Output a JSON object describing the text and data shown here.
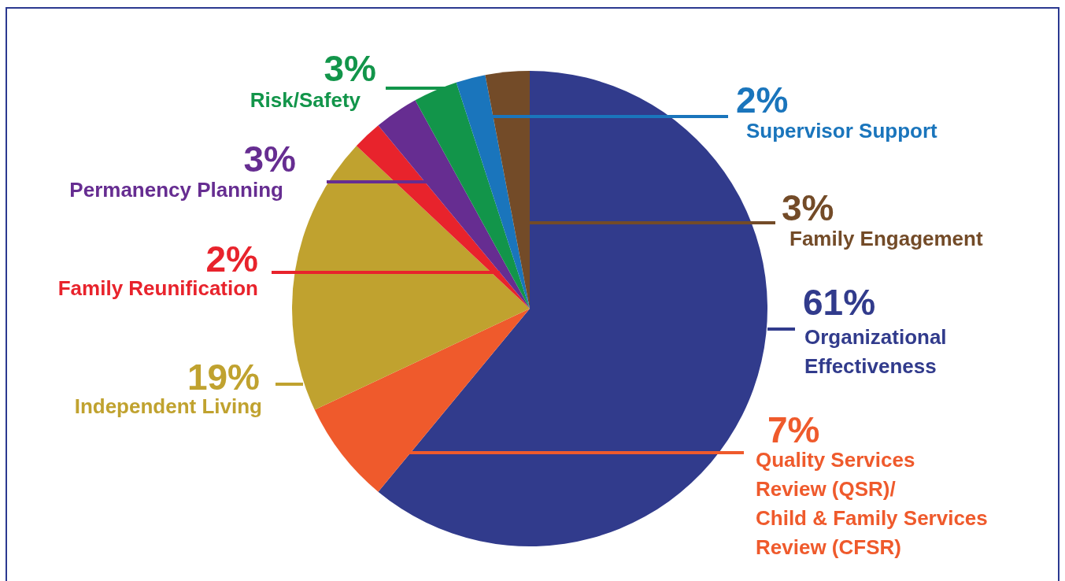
{
  "chart_data": {
    "type": "pie",
    "categories": [
      "Organizational Effectiveness",
      "Quality Services\nReview (QSR)/\nChild & Family Services\nReview (CFSR)",
      "Independent Living",
      "Family Reunification",
      "Permanency Planning",
      "Risk/Safety",
      "Supervisor Support",
      "Family Engagement"
    ],
    "values": [
      61,
      7,
      19,
      2,
      3,
      3,
      2,
      3
    ],
    "colors": [
      "#313b8c",
      "#ef5a2c",
      "#c0a22f",
      "#e8232c",
      "#662d91",
      "#12954a",
      "#1a75bc",
      "#734b28"
    ],
    "value_labels": [
      "61%",
      "7%",
      "19%",
      "2%",
      "3%",
      "3%",
      "2%",
      "3%"
    ]
  }
}
